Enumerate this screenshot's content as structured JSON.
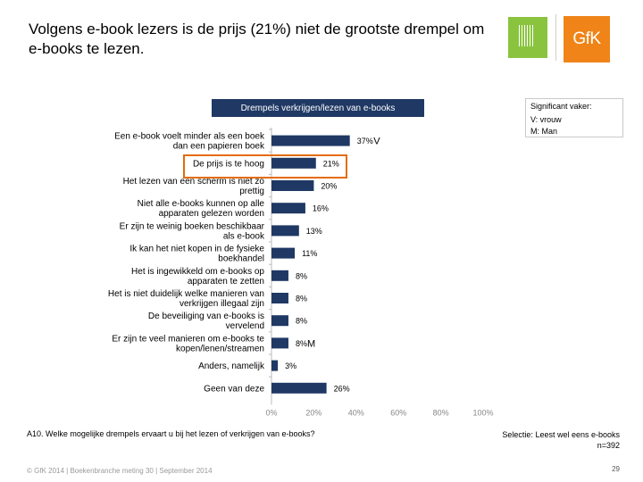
{
  "slide": {
    "title": "Volgens e-book lezers is de prijs (21%) niet de grootste drempel om e-books te lezen.",
    "sig_box": {
      "title": "Significant vaker:",
      "lines": [
        "V: vrouw",
        "M: Man"
      ]
    },
    "question": "A10. Welke mogelijke drempels ervaart u bij het lezen of verkrijgen van e-books?",
    "selection_lines": [
      "Selectie: Leest wel eens e-books",
      "n=392"
    ],
    "footer": "© GfK 2014 | Boekenbranche meting 30 | September 2014",
    "page_number": "29",
    "logos": {
      "gfk": "GfK"
    },
    "colors": {
      "bar": "#1f3864",
      "header": "#1f3864",
      "highlight": "#e46c0a",
      "logo_green": "#8ac43f",
      "logo_orange": "#f08418"
    }
  },
  "chart_data": {
    "type": "bar",
    "orientation": "horizontal",
    "title": "Drempels verkrijgen/lezen van e-books",
    "categories": [
      "Een e-book voelt minder als een boek dan een papieren boek",
      "De prijs is te hoog",
      "Het lezen van een scherm is niet zo prettig",
      "Niet alle e-books kunnen op alle apparaten gelezen worden",
      "Er zijn te weinig boeken beschikbaar als e-book",
      "Ik kan het niet kopen in de fysieke boekhandel",
      "Het is ingewikkeld om e-books op apparaten te zetten",
      "Het is niet duidelijk welke manieren van verkrijgen illegaal zijn",
      "De beveiliging van e-books is vervelend",
      "Er zijn te veel manieren om e-books te kopen/lenen/streamen",
      "Anders, namelijk",
      "Geen van deze"
    ],
    "label_lines": [
      [
        "Een e-book voelt minder als een boek",
        "dan een papieren boek"
      ],
      [
        "De prijs is te hoog"
      ],
      [
        "Het lezen van een scherm is niet zo",
        "prettig"
      ],
      [
        "Niet alle e-books kunnen op alle",
        "apparaten gelezen worden"
      ],
      [
        "Er zijn te weinig boeken beschikbaar",
        "als e-book"
      ],
      [
        "Ik kan het niet kopen in de fysieke",
        "boekhandel"
      ],
      [
        "Het is ingewikkeld om e-books op",
        "apparaten te zetten"
      ],
      [
        "Het is niet duidelijk welke manieren van",
        "verkrijgen illegaal zijn"
      ],
      [
        "De beveiliging van e-books is",
        "vervelend"
      ],
      [
        "Er zijn te veel manieren om e-books te",
        "kopen/lenen/streamen"
      ],
      [
        "Anders, namelijk"
      ],
      [
        "Geen van deze"
      ]
    ],
    "values": [
      37,
      21,
      20,
      16,
      13,
      11,
      8,
      8,
      8,
      8,
      3,
      26
    ],
    "value_labels": [
      "37%",
      "21%",
      "20%",
      "16%",
      "13%",
      "11%",
      "8%",
      "8%",
      "8%",
      "8%",
      "3%",
      "26%"
    ],
    "significance": [
      "V",
      "",
      "",
      "",
      "",
      "",
      "",
      "",
      "",
      "M",
      "",
      ""
    ],
    "highlight_index": 1,
    "xlim": [
      0,
      100
    ],
    "x_ticks": [
      0,
      20,
      40,
      60,
      80,
      100
    ],
    "x_tick_labels": [
      "0%",
      "20%",
      "40%",
      "60%",
      "80%",
      "100%"
    ],
    "grid": false,
    "legend": "none"
  }
}
